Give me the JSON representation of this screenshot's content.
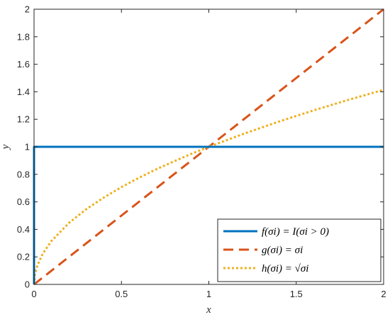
{
  "chart_data": {
    "type": "line",
    "title": "",
    "xlabel": "x",
    "ylabel": "y",
    "xlim": [
      0,
      2
    ],
    "ylim": [
      0,
      2
    ],
    "x_ticks": [
      "0",
      "0.5",
      "1",
      "1.5",
      "2"
    ],
    "y_ticks": [
      "0",
      "0.2",
      "0.4",
      "0.6",
      "0.8",
      "1",
      "1.2",
      "1.4",
      "1.6",
      "1.8",
      "2"
    ],
    "x_tick_values": [
      0,
      0.5,
      1,
      1.5,
      2
    ],
    "y_tick_values": [
      0,
      0.2,
      0.4,
      0.6,
      0.8,
      1,
      1.2,
      1.4,
      1.6,
      1.8,
      2
    ],
    "grid": false,
    "legend_position": "bottom-right",
    "series": [
      {
        "name": "f(σi) = I(σi > 0)",
        "color": "#0072BD",
        "style": "solid",
        "x": [
          0,
          0,
          0.01,
          2
        ],
        "y": [
          0,
          1,
          1,
          1
        ]
      },
      {
        "name": "g(σi) = σi",
        "color": "#D95319",
        "style": "dashed",
        "x": [
          0,
          0.5,
          1,
          1.5,
          2
        ],
        "y": [
          0,
          0.5,
          1,
          1.5,
          2
        ]
      },
      {
        "name": "h(σi) = √σi",
        "color": "#EDB120",
        "style": "dotted",
        "x": [
          0,
          0.005,
          0.02,
          0.05,
          0.1,
          0.2,
          0.3,
          0.4,
          0.5,
          0.6,
          0.7,
          0.8,
          0.9,
          1,
          1.2,
          1.4,
          1.6,
          1.8,
          2
        ],
        "y": [
          0,
          0.071,
          0.141,
          0.224,
          0.316,
          0.447,
          0.548,
          0.632,
          0.707,
          0.775,
          0.837,
          0.894,
          0.949,
          1,
          1.095,
          1.183,
          1.265,
          1.342,
          1.414
        ]
      }
    ]
  }
}
